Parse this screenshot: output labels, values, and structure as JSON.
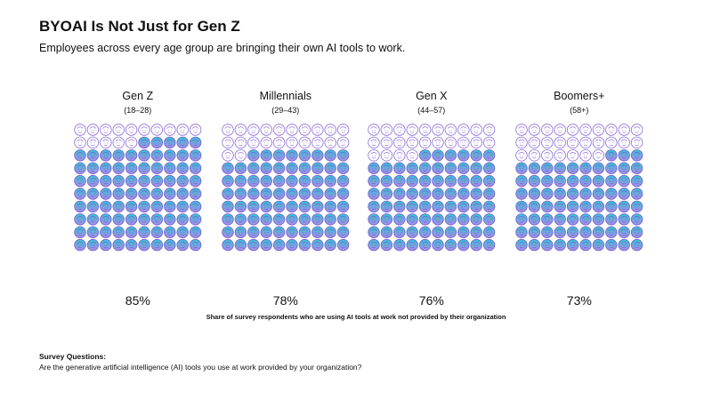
{
  "header": {
    "title": "BYOAI Is Not Just for Gen Z",
    "subtitle": "Employees across every age group are bringing their own AI tools to work."
  },
  "chart_data": {
    "type": "pictogram",
    "unit": "one face icon = 1% of respondents (10 x 10 grid)",
    "series": [
      {
        "name": "Gen Z",
        "sublabel": "(18–28)",
        "value": 85,
        "value_label": "85%"
      },
      {
        "name": "Millennials",
        "sublabel": "(29–43)",
        "value": 78,
        "value_label": "78%"
      },
      {
        "name": "Gen X",
        "sublabel": "(44–57)",
        "value": 76,
        "value_label": "76%"
      },
      {
        "name": "Boomers+",
        "sublabel": "(58+)",
        "value": 73,
        "value_label": "73%"
      }
    ],
    "caption": "Share of survey respondents who are using AI tools at work not provided by their organization",
    "colors": {
      "empty_fill": "#ffffff",
      "empty_stroke": "#8e6ad8",
      "filled_top": "#2fc4d2",
      "filled_bottom": "#a98ce8",
      "filled_stroke": "#7b5bd0"
    }
  },
  "footer": {
    "survey_label": "Survey Questions:",
    "survey_question": "Are the generative artificial intelligence (AI) tools you use at work provided by your organization?"
  }
}
